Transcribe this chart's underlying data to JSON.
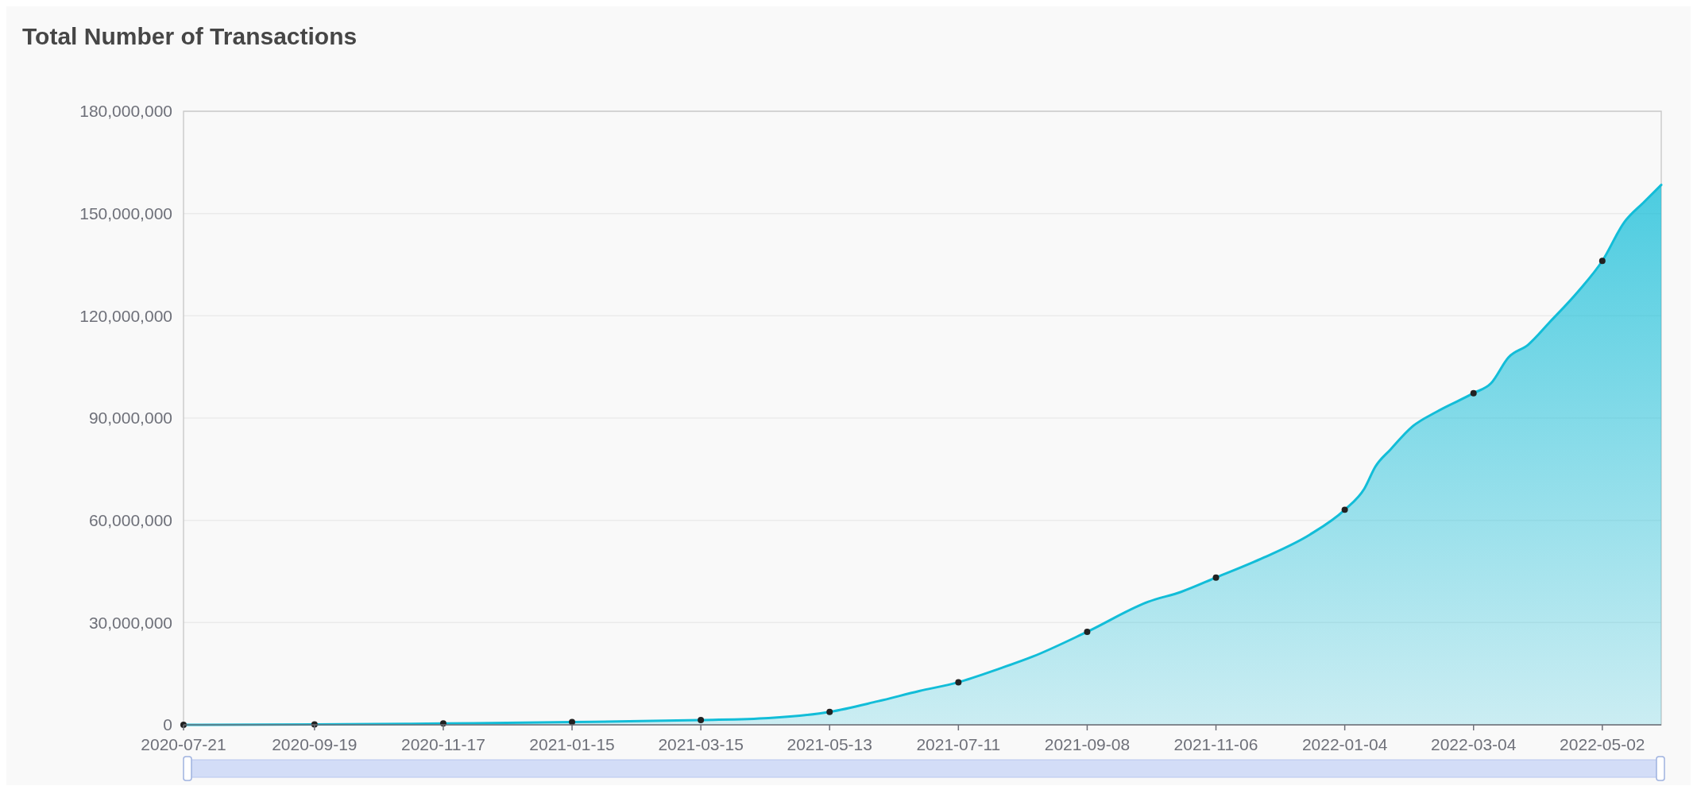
{
  "chart_data": {
    "type": "area",
    "title": "Total Number of Transactions",
    "xlim": [
      "2020-07-21",
      "2022-05-29"
    ],
    "xticks": [
      "2020-07-21",
      "2020-09-19",
      "2020-11-17",
      "2021-01-15",
      "2021-03-15",
      "2021-05-13",
      "2021-07-11",
      "2021-09-08",
      "2021-11-06",
      "2022-01-04",
      "2022-03-04",
      "2022-05-02"
    ],
    "ylim": [
      0,
      180000000
    ],
    "yticks": [
      0,
      {
        "value": 30000000,
        "label": "30,000,000"
      },
      {
        "value": 60000000,
        "label": "60,000,000"
      },
      {
        "value": 90000000,
        "label": "90,000,000"
      },
      {
        "value": 120000000,
        "label": "120,000,000"
      },
      {
        "value": 150000000,
        "label": "150,000,000"
      },
      {
        "value": 180000000,
        "label": "180,000,000"
      }
    ],
    "grid": "y",
    "series": [
      {
        "color": "#12bdd8",
        "marker": "none",
        "x": [
          "2020-07-21",
          "2020-09-19",
          "2020-11-17",
          "2021-01-15",
          "2021-03-15",
          "2021-04-15",
          "2021-05-13",
          "2021-06-04",
          "2021-06-23",
          "2021-07-11",
          "2021-07-29",
          "2021-08-14",
          "2021-09-08",
          "2021-10-06",
          "2021-10-21",
          "2021-11-06",
          "2021-11-28",
          "2021-12-19",
          "2022-01-04",
          "2022-01-13",
          "2022-01-18",
          "2022-01-25",
          "2022-02-04",
          "2022-02-15",
          "2022-03-04",
          "2022-03-12",
          "2022-03-20",
          "2022-03-29",
          "2022-04-08",
          "2022-04-21",
          "2022-05-02",
          "2022-05-12",
          "2022-05-21",
          "2022-05-29"
        ],
        "values": [
          0,
          100000,
          400000,
          800000,
          1400000,
          2000000,
          3800000,
          6900000,
          9900000,
          12500000,
          16300000,
          20000000,
          27300000,
          36100000,
          39000000,
          43200000,
          49100000,
          55800000,
          63100000,
          69300000,
          75700000,
          80800000,
          87500000,
          91800000,
          97300000,
          100200000,
          107800000,
          111500000,
          118200000,
          127200000,
          136100000,
          147400000,
          153300000,
          158400000
        ]
      },
      {
        "type": "scatter",
        "color": "#222222",
        "marker": "circle",
        "x": [
          "2020-07-21",
          "2020-09-19",
          "2020-11-17",
          "2021-01-15",
          "2021-03-15",
          "2021-05-13",
          "2021-07-11",
          "2021-09-08",
          "2021-11-06",
          "2022-01-04",
          "2022-03-04",
          "2022-05-02"
        ],
        "values": [
          0,
          100000,
          400000,
          800000,
          1400000,
          3800000,
          12500000,
          27300000,
          43200000,
          63100000,
          97300000,
          136100000
        ]
      }
    ]
  }
}
